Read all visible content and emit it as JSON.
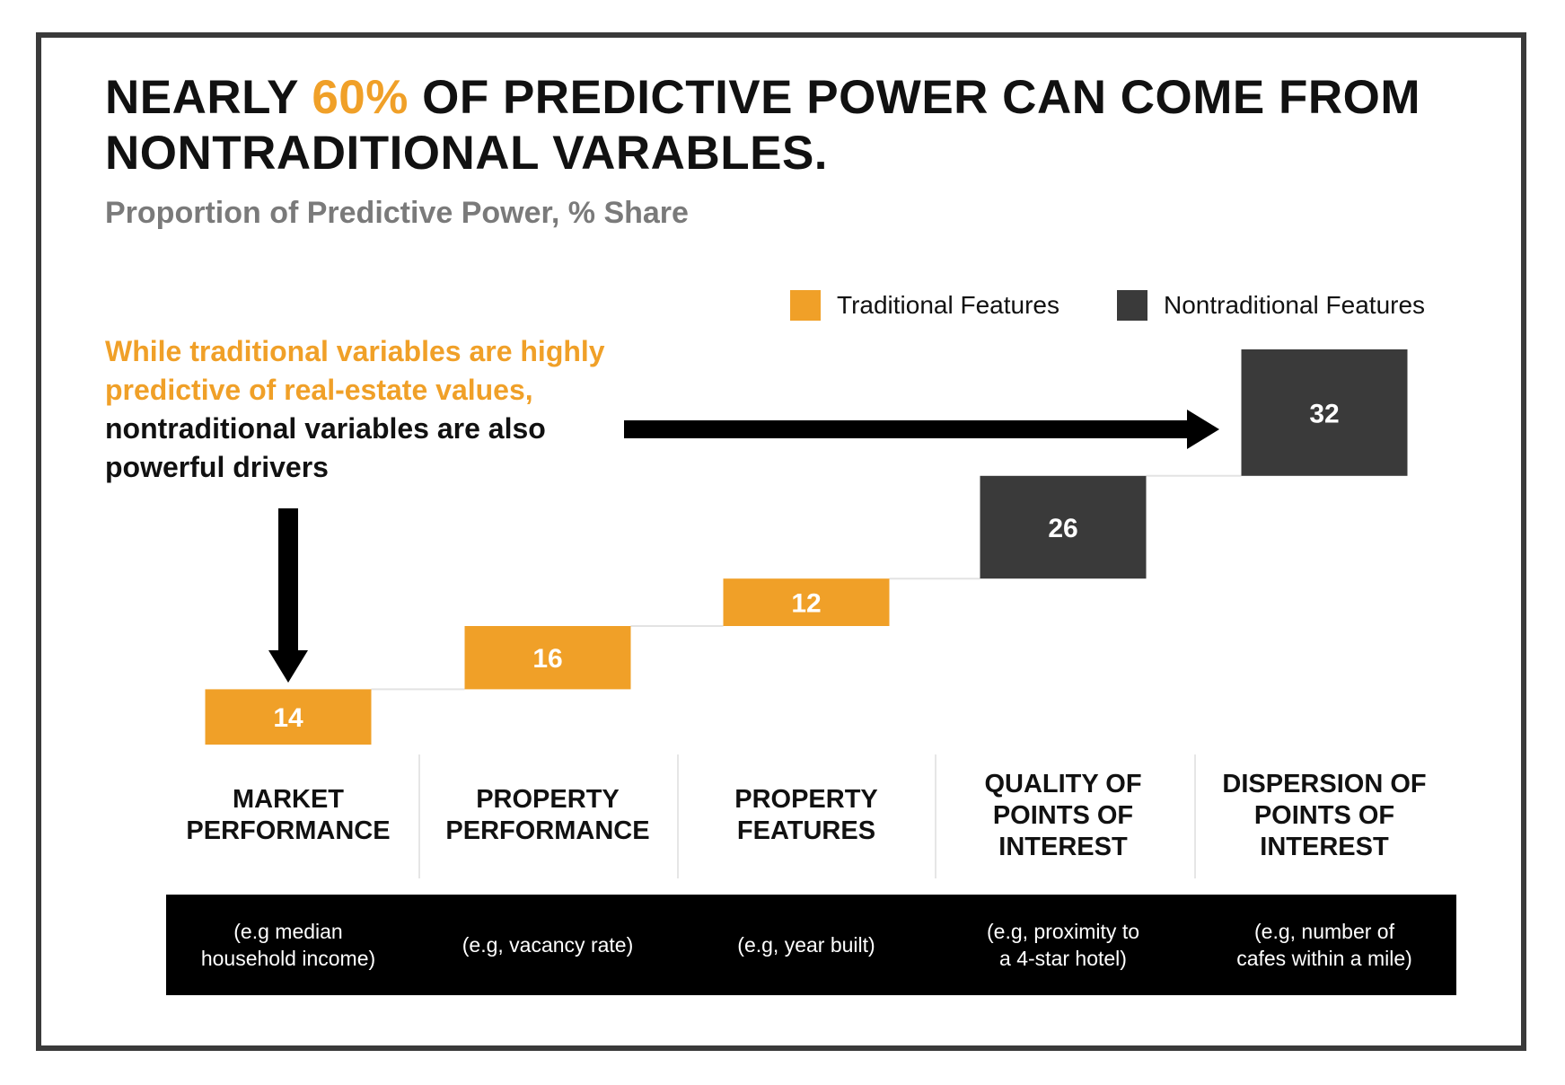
{
  "title": {
    "part1": "NEARLY ",
    "highlight": "60%",
    "part2": " OF PREDICTIVE POWER CAN COME FROM NONTRADITIONAL VARABLES."
  },
  "subtitle": "Proportion of Predictive Power, % Share",
  "legend": {
    "traditional": "Traditional Features",
    "nontraditional": "Nontraditional Features"
  },
  "callout": {
    "highlight": "While traditional variables are highly predictive of real-estate values,",
    "rest": " nontraditional variables are also powerful drivers"
  },
  "colors": {
    "traditional": "#f0a028",
    "nontraditional": "#3a3a3a",
    "highlight": "#f0a028"
  },
  "chart_data": {
    "type": "bar",
    "subtype": "waterfall",
    "title": "NEARLY 60% OF PREDICTIVE POWER CAN COME FROM NONTRADITIONAL VARABLES.",
    "subtitle": "Proportion of Predictive Power, % Share",
    "categories": [
      "MARKET\nPERFORMANCE",
      "PROPERTY\nPERFORMANCE",
      "PROPERTY\nFEATURES",
      "QUALITY OF\nPOINTS OF\nINTEREST",
      "DISPERSION OF\nPOINTS OF\nINTEREST"
    ],
    "values": [
      14,
      16,
      12,
      26,
      32
    ],
    "feature_type": [
      "traditional",
      "traditional",
      "traditional",
      "nontraditional",
      "nontraditional"
    ],
    "examples": [
      "(e.g median\nhousehold income)",
      "(e.g, vacancy rate)",
      "(e.g, year built)",
      "(e.g, proximity to\na 4-star hotel)",
      "(e.g, number of\ncafes within a mile)"
    ],
    "legend": [
      "Traditional Features",
      "Nontraditional Features"
    ],
    "legend_position": "top-right",
    "ylim": [
      0,
      100
    ],
    "grid": false
  }
}
